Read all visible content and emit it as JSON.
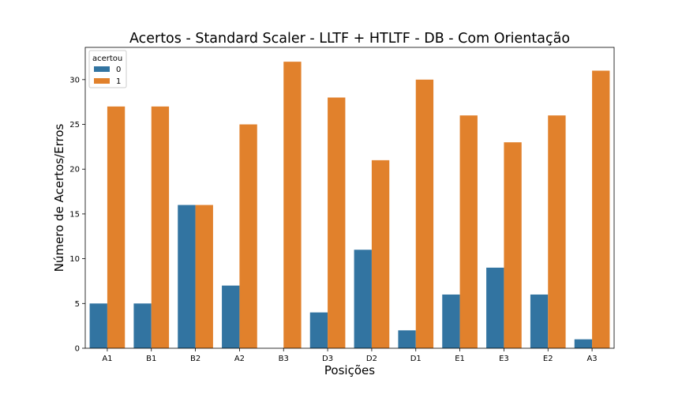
{
  "chart_data": {
    "type": "bar",
    "title": "Acertos - Standard Scaler - LLTF + HTLTF - DB - Com Orientação",
    "xlabel": "Posições",
    "ylabel": "Número de Acertos/Erros",
    "categories": [
      "A1",
      "B1",
      "B2",
      "A2",
      "B3",
      "D3",
      "D2",
      "D1",
      "E1",
      "E3",
      "E2",
      "A3"
    ],
    "series": [
      {
        "name": "0",
        "color": "#3274a1",
        "values": [
          5,
          5,
          16,
          7,
          0,
          4,
          11,
          2,
          6,
          9,
          6,
          1
        ]
      },
      {
        "name": "1",
        "color": "#e1812c",
        "values": [
          27,
          27,
          16,
          25,
          32,
          28,
          21,
          30,
          26,
          23,
          26,
          31
        ]
      }
    ],
    "ylim": [
      0,
      33.6
    ],
    "yticks": [
      0,
      5,
      10,
      15,
      20,
      25,
      30
    ],
    "grid": false,
    "legend": {
      "title": "acertou",
      "placement": "top-left"
    }
  }
}
